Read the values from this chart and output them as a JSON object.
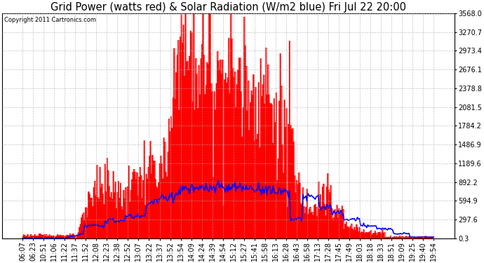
{
  "title": "Grid Power (watts red) & Solar Radiation (W/m2 blue) Fri Jul 22 20:00",
  "copyright": "Copyright 2011 Cartronics.com",
  "yticks": [
    0.3,
    297.6,
    594.9,
    892.2,
    1189.6,
    1486.9,
    1784.2,
    2081.5,
    2378.8,
    2676.1,
    2973.4,
    3270.7,
    3568.0
  ],
  "ymax": 3568.0,
  "ymin": 0.3,
  "x_labels": [
    "06:07",
    "06:23",
    "10:51",
    "11:06",
    "11:22",
    "11:37",
    "11:52",
    "12:08",
    "12:23",
    "12:38",
    "12:52",
    "13:07",
    "13:22",
    "13:37",
    "13:52",
    "13:54",
    "14:09",
    "14:24",
    "14:39",
    "14:54",
    "15:12",
    "15:27",
    "15:41",
    "15:58",
    "16:13",
    "16:28",
    "16:43",
    "16:58",
    "17:13",
    "17:28",
    "17:45",
    "17:49",
    "18:03",
    "18:18",
    "18:33",
    "18:51",
    "19:09",
    "19:25",
    "19:40",
    "19:54"
  ],
  "background_color": "#ffffff",
  "grid_color": "#aaaaaa",
  "red_color": "#ff0000",
  "blue_color": "#0000ff",
  "title_fontsize": 10.5,
  "tick_fontsize": 7
}
